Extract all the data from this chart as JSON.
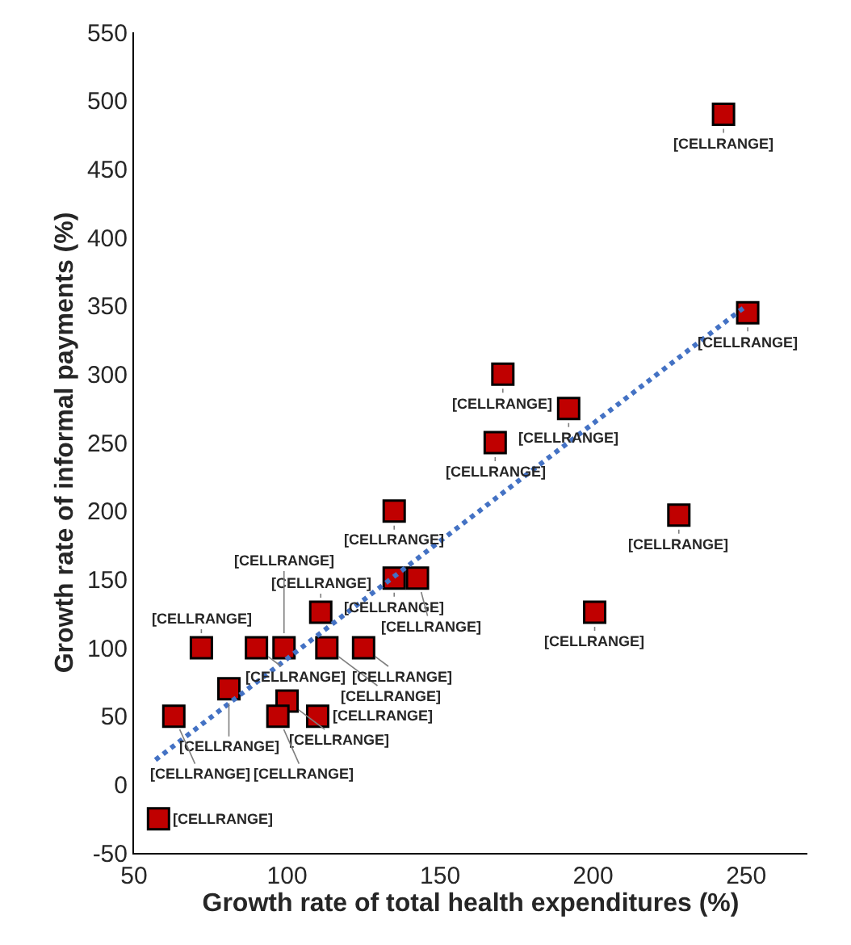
{
  "chart_data": {
    "type": "scatter",
    "xlabel": "Growth rate of total health expenditures (%)",
    "ylabel": "Growth rate of informal payments (%)",
    "xlim": [
      50,
      270
    ],
    "xticks": [
      50,
      100,
      150,
      200,
      250
    ],
    "ylim": [
      -50,
      550
    ],
    "yticks": [
      -50,
      0,
      50,
      100,
      150,
      200,
      250,
      300,
      350,
      400,
      450,
      500,
      550
    ],
    "marker": "square",
    "series": [
      {
        "color": "#c00000",
        "x": [
          242.6,
          250.5,
          170.5,
          192,
          168,
          135,
          228,
          200.5,
          135,
          142.6,
          111,
          72,
          90,
          99,
          113,
          125,
          81,
          100,
          63,
          97,
          110,
          58
        ],
        "values": [
          490,
          345,
          300,
          275,
          250,
          200,
          197,
          126,
          151,
          151,
          126,
          100,
          100,
          100,
          100,
          100,
          70,
          61,
          50,
          50,
          50,
          -25
        ],
        "value_labels": [
          "[CELLRANGE]",
          "[CELLRANGE]",
          "[CELLRANGE]",
          "[CELLRANGE]",
          "[CELLRANGE]",
          "[CELLRANGE]",
          "[CELLRANGE]",
          "[CELLRANGE]",
          "[CELLRANGE]",
          "[CELLRANGE]",
          "[CELLRANGE]",
          "[CELLRANGE]",
          "[CELLRANGE]",
          "[CELLRANGE]",
          "[CELLRANGE]",
          "[CELLRANGE]",
          "[CELLRANGE]",
          "[CELLRANGE]",
          "[CELLRANGE]",
          "[CELLRANGE]",
          "[CELLRANGE]",
          "[CELLRANGE]"
        ]
      },
      {
        "type": "line",
        "color": "#4472c4",
        "line_style": "dotted",
        "marker": "none",
        "x": [
          57,
          250
        ],
        "values": [
          18,
          350
        ]
      }
    ]
  }
}
